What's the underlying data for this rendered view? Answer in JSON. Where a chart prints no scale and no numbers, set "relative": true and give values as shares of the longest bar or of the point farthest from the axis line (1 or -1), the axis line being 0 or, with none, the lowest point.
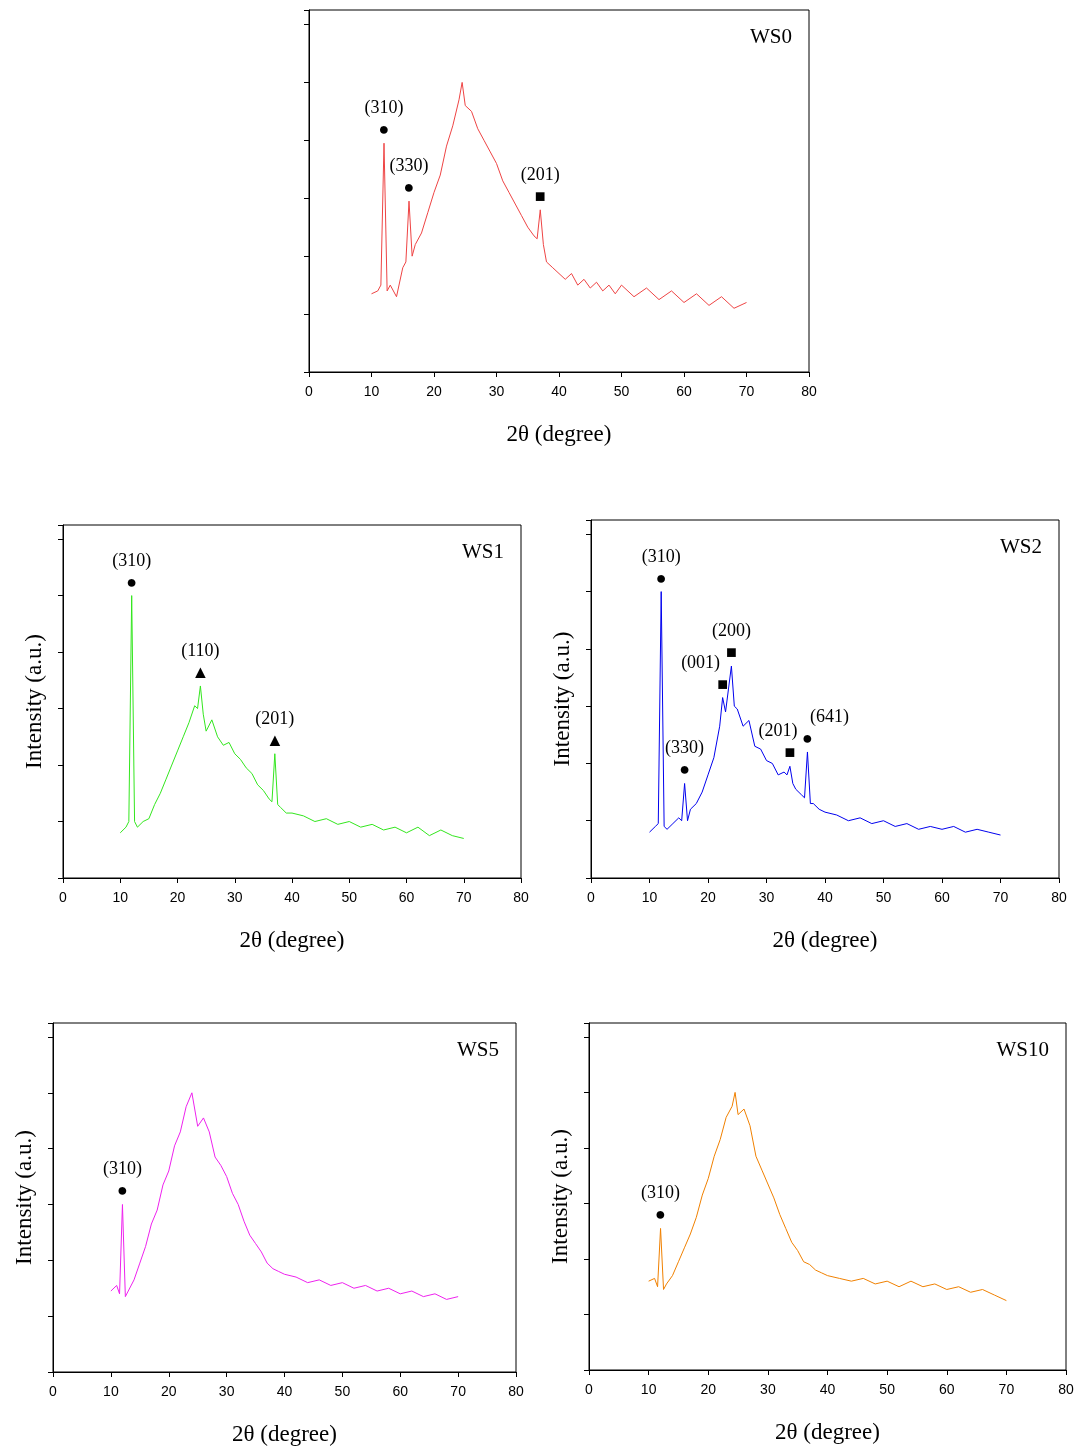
{
  "chart_data": [
    {
      "type": "line",
      "title": "WS0",
      "xlabel": "2θ (degree)",
      "relative": true,
      "xlim": [
        0,
        80
      ],
      "xticks": [
        0,
        10,
        20,
        30,
        40,
        50,
        60,
        70,
        80
      ],
      "x": [
        10,
        11,
        11.5,
        12,
        12.5,
        13,
        14,
        15,
        15.5,
        16,
        16.5,
        17,
        18,
        19,
        20,
        21,
        22,
        23,
        24,
        24.5,
        25,
        26,
        27,
        28,
        29,
        30,
        31,
        32,
        33,
        34,
        35,
        36,
        36.5,
        37,
        37.5,
        38,
        39,
        40,
        41,
        42,
        43,
        44,
        45,
        46,
        47,
        48,
        49,
        50,
        52,
        54,
        56,
        58,
        60,
        62,
        64,
        66,
        68,
        70
      ],
      "series": [
        {
          "color": "#ee4444",
          "values": [
            0.27,
            0.28,
            0.3,
            0.79,
            0.28,
            0.3,
            0.26,
            0.36,
            0.38,
            0.59,
            0.4,
            0.44,
            0.48,
            0.55,
            0.62,
            0.68,
            0.78,
            0.85,
            0.94,
            1.0,
            0.92,
            0.9,
            0.84,
            0.8,
            0.76,
            0.72,
            0.66,
            0.62,
            0.58,
            0.54,
            0.5,
            0.47,
            0.46,
            0.56,
            0.44,
            0.38,
            0.36,
            0.34,
            0.32,
            0.34,
            0.3,
            0.32,
            0.29,
            0.31,
            0.28,
            0.3,
            0.27,
            0.3,
            0.26,
            0.29,
            0.25,
            0.28,
            0.24,
            0.27,
            0.23,
            0.26,
            0.22,
            0.24
          ]
        }
      ],
      "annotations": [
        {
          "text": "(310)",
          "x": 12,
          "y": 0.79
        },
        {
          "text": "●",
          "x": 12,
          "y": 0.79
        },
        {
          "text": "(330)",
          "x": 16,
          "y": 0.59
        },
        {
          "text": "●",
          "x": 16,
          "y": 0.59
        },
        {
          "text": "(201)",
          "x": 37,
          "y": 0.56
        },
        {
          "text": "■",
          "x": 37,
          "y": 0.56
        }
      ]
    },
    {
      "type": "line",
      "title": "WS1",
      "xlabel": "2θ (degree)",
      "ylabel": "Intensity (a.u.)",
      "relative": true,
      "xlim": [
        0,
        80
      ],
      "xticks": [
        0,
        10,
        20,
        30,
        40,
        50,
        60,
        70,
        80
      ],
      "x": [
        10,
        11,
        11.5,
        12,
        12.5,
        13,
        14,
        15,
        16,
        17,
        18,
        19,
        20,
        21,
        22,
        23,
        23.5,
        24,
        24.5,
        25,
        26,
        27,
        28,
        29,
        30,
        31,
        32,
        33,
        34,
        35,
        36,
        36.5,
        37,
        37.5,
        38,
        39,
        40,
        42,
        44,
        46,
        48,
        50,
        52,
        54,
        56,
        58,
        60,
        62,
        64,
        66,
        68,
        70
      ],
      "series": [
        {
          "color": "#33e61e",
          "values": [
            0.16,
            0.18,
            0.2,
            1.0,
            0.2,
            0.18,
            0.2,
            0.21,
            0.26,
            0.3,
            0.35,
            0.4,
            0.45,
            0.5,
            0.55,
            0.61,
            0.6,
            0.68,
            0.58,
            0.52,
            0.56,
            0.5,
            0.47,
            0.48,
            0.44,
            0.42,
            0.39,
            0.37,
            0.33,
            0.31,
            0.28,
            0.27,
            0.44,
            0.26,
            0.25,
            0.23,
            0.23,
            0.22,
            0.2,
            0.21,
            0.19,
            0.2,
            0.18,
            0.19,
            0.17,
            0.18,
            0.16,
            0.18,
            0.15,
            0.17,
            0.15,
            0.14
          ]
        }
      ],
      "annotations": [
        {
          "text": "(310)",
          "x": 12,
          "y": 1.0
        },
        {
          "text": "●",
          "x": 12,
          "y": 1.0
        },
        {
          "text": "(110)",
          "x": 24,
          "y": 0.68
        },
        {
          "text": "▲",
          "x": 24,
          "y": 0.68
        },
        {
          "text": "(201)",
          "x": 37,
          "y": 0.44
        },
        {
          "text": "▲",
          "x": 37,
          "y": 0.44
        }
      ]
    },
    {
      "type": "line",
      "title": "WS2",
      "xlabel": "2θ (degree)",
      "ylabel": "Intensity (a.u.)",
      "relative": true,
      "xlim": [
        0,
        80
      ],
      "xticks": [
        0,
        10,
        20,
        30,
        40,
        50,
        60,
        70,
        80
      ],
      "x": [
        10,
        11,
        11.5,
        12,
        12.5,
        13,
        14,
        15,
        15.5,
        16,
        16.5,
        17,
        18,
        19,
        20,
        21,
        22,
        22.5,
        23,
        23.5,
        24,
        24.5,
        25,
        26,
        27,
        28,
        29,
        30,
        31,
        32,
        33,
        33.5,
        34,
        34.5,
        35,
        36,
        36.5,
        37,
        37.5,
        38,
        39,
        40,
        42,
        44,
        46,
        48,
        50,
        52,
        54,
        56,
        58,
        60,
        62,
        64,
        66,
        68,
        70
      ],
      "series": [
        {
          "color": "#0000ee",
          "values": [
            0.16,
            0.18,
            0.19,
            1.0,
            0.18,
            0.17,
            0.19,
            0.21,
            0.2,
            0.33,
            0.2,
            0.24,
            0.26,
            0.3,
            0.36,
            0.42,
            0.53,
            0.63,
            0.58,
            0.66,
            0.74,
            0.6,
            0.59,
            0.53,
            0.55,
            0.46,
            0.45,
            0.41,
            0.4,
            0.36,
            0.37,
            0.36,
            0.39,
            0.33,
            0.31,
            0.29,
            0.28,
            0.44,
            0.26,
            0.26,
            0.24,
            0.23,
            0.22,
            0.2,
            0.21,
            0.19,
            0.2,
            0.18,
            0.19,
            0.17,
            0.18,
            0.17,
            0.18,
            0.16,
            0.17,
            0.16,
            0.15
          ]
        }
      ],
      "annotations": [
        {
          "text": "(310)",
          "x": 12,
          "y": 1.0
        },
        {
          "text": "●",
          "x": 12,
          "y": 1.0
        },
        {
          "text": "(330)",
          "x": 16,
          "y": 0.33
        },
        {
          "text": "●",
          "x": 16,
          "y": 0.33
        },
        {
          "text": "(001)",
          "x": 22.5,
          "y": 0.63
        },
        {
          "text": "■",
          "x": 22.5,
          "y": 0.63
        },
        {
          "text": "(200)",
          "x": 24,
          "y": 0.74
        },
        {
          "text": "■",
          "x": 24,
          "y": 0.74
        },
        {
          "text": "(201)",
          "x": 34,
          "y": 0.39
        },
        {
          "text": "■",
          "x": 34,
          "y": 0.39
        },
        {
          "text": "(641)",
          "x": 37,
          "y": 0.44
        },
        {
          "text": "●",
          "x": 37,
          "y": 0.44
        }
      ]
    },
    {
      "type": "line",
      "title": "WS5",
      "xlabel": "2θ (degree)",
      "ylabel": "Intensity (a.u.)",
      "relative": true,
      "xlim": [
        0,
        80
      ],
      "xticks": [
        0,
        10,
        20,
        30,
        40,
        50,
        60,
        70,
        80
      ],
      "x": [
        10,
        11,
        11.5,
        12,
        12.5,
        13,
        14,
        15,
        16,
        17,
        18,
        19,
        20,
        21,
        22,
        23,
        24,
        25,
        26,
        27,
        28,
        29,
        30,
        31,
        32,
        33,
        34,
        35,
        36,
        37,
        38,
        39,
        40,
        42,
        44,
        46,
        48,
        50,
        52,
        54,
        56,
        58,
        60,
        62,
        64,
        66,
        68,
        70
      ],
      "series": [
        {
          "color": "#ee22ee",
          "values": [
            0.29,
            0.31,
            0.28,
            0.6,
            0.27,
            0.29,
            0.33,
            0.39,
            0.45,
            0.53,
            0.58,
            0.67,
            0.72,
            0.81,
            0.86,
            0.95,
            1.0,
            0.88,
            0.91,
            0.86,
            0.77,
            0.74,
            0.7,
            0.64,
            0.6,
            0.54,
            0.49,
            0.46,
            0.43,
            0.39,
            0.37,
            0.36,
            0.35,
            0.34,
            0.32,
            0.33,
            0.31,
            0.32,
            0.3,
            0.31,
            0.29,
            0.3,
            0.28,
            0.29,
            0.27,
            0.28,
            0.26,
            0.27
          ]
        }
      ],
      "annotations": [
        {
          "text": "(310)",
          "x": 12,
          "y": 0.6
        },
        {
          "text": "●",
          "x": 12,
          "y": 0.6
        }
      ]
    },
    {
      "type": "line",
      "title": "WS10",
      "xlabel": "2θ (degree)",
      "ylabel": "Intensity (a.u.)",
      "relative": true,
      "xlim": [
        0,
        80
      ],
      "xticks": [
        0,
        10,
        20,
        30,
        40,
        50,
        60,
        70,
        80
      ],
      "x": [
        10,
        11,
        11.5,
        12,
        12.5,
        13,
        14,
        15,
        16,
        17,
        18,
        19,
        20,
        21,
        22,
        23,
        24,
        24.5,
        25,
        26,
        27,
        28,
        29,
        30,
        31,
        32,
        33,
        34,
        35,
        36,
        37,
        38,
        39,
        40,
        42,
        44,
        46,
        48,
        50,
        52,
        54,
        56,
        58,
        60,
        62,
        64,
        66,
        68,
        70
      ],
      "series": [
        {
          "color": "#f08000",
          "values": [
            0.32,
            0.33,
            0.3,
            0.51,
            0.29,
            0.31,
            0.34,
            0.39,
            0.44,
            0.49,
            0.55,
            0.63,
            0.69,
            0.77,
            0.83,
            0.91,
            0.95,
            1.0,
            0.92,
            0.94,
            0.88,
            0.77,
            0.72,
            0.67,
            0.62,
            0.56,
            0.51,
            0.46,
            0.43,
            0.39,
            0.38,
            0.36,
            0.35,
            0.34,
            0.33,
            0.32,
            0.33,
            0.31,
            0.32,
            0.3,
            0.32,
            0.3,
            0.31,
            0.29,
            0.3,
            0.28,
            0.29,
            0.27,
            0.25
          ]
        }
      ],
      "annotations": [
        {
          "text": "(310)",
          "x": 12,
          "y": 0.51
        },
        {
          "text": "●",
          "x": 12,
          "y": 0.51
        }
      ]
    }
  ]
}
